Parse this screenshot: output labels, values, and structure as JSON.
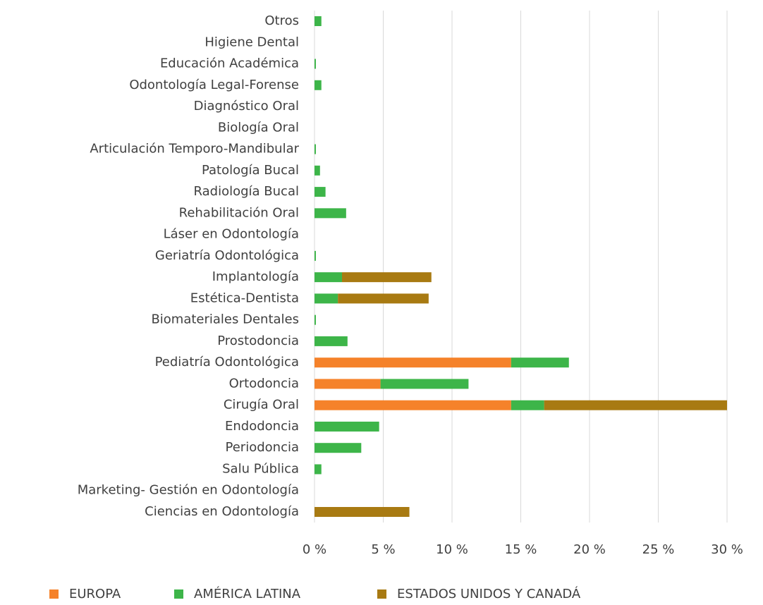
{
  "chart_data": {
    "type": "bar",
    "orientation": "horizontal",
    "stacked": true,
    "categories": [
      "Otros",
      "Higiene Dental",
      "Educación Académica",
      "Odontología Legal-Forense",
      "Diagnóstico Oral",
      "Biología Oral",
      "Articulación Temporo-Mandibular",
      "Patología Bucal",
      "Radiología Bucal",
      "Rehabilitación Oral",
      "Láser en Odontología",
      "Geriatría Odontológica",
      "Implantología",
      "Estética-Dentista",
      "Biomateriales Dentales",
      "Prostodoncia",
      "Pediatría Odontológica",
      "Ortodoncia",
      "Cirugía Oral",
      "Endodoncia",
      "Periodoncia",
      "Salu Pública",
      "Marketing- Gestión en Odontología",
      "Ciencias en Odontología"
    ],
    "series": [
      {
        "name": "EUROPA",
        "color": "#f5822a",
        "values": [
          0,
          0,
          0,
          0,
          0,
          0,
          0,
          0,
          0,
          0,
          0,
          0,
          0,
          0,
          0,
          0,
          14.3,
          4.8,
          14.3,
          0,
          0,
          0,
          0,
          0
        ]
      },
      {
        "name": "AMÉRICA LATINA",
        "color": "#3db549",
        "values": [
          0.5,
          0,
          0.1,
          0.5,
          0,
          0,
          0.1,
          0.4,
          0.8,
          2.3,
          0,
          0.1,
          2.0,
          1.7,
          0.1,
          2.4,
          4.2,
          6.4,
          2.4,
          4.7,
          3.4,
          0.5,
          0,
          0
        ]
      },
      {
        "name": "ESTADOS UNIDOS Y CANADÁ",
        "color": "#a87a12",
        "values": [
          0,
          0,
          0,
          0,
          0,
          0,
          0,
          0,
          0,
          0,
          0,
          0,
          6.5,
          6.6,
          0,
          0,
          0,
          0,
          13.3,
          0,
          0,
          0,
          0,
          6.9
        ]
      }
    ],
    "xlim": [
      0,
      30
    ],
    "xticks": [
      {
        "value": 0,
        "label": "0 %"
      },
      {
        "value": 5,
        "label": "5 %"
      },
      {
        "value": 10,
        "label": "10 %"
      },
      {
        "value": 15,
        "label": "15 %"
      },
      {
        "value": 20,
        "label": "20 %"
      },
      {
        "value": 25,
        "label": "25 %"
      },
      {
        "value": 30,
        "label": "30 %"
      }
    ],
    "grid": true,
    "legend": "bottom"
  }
}
